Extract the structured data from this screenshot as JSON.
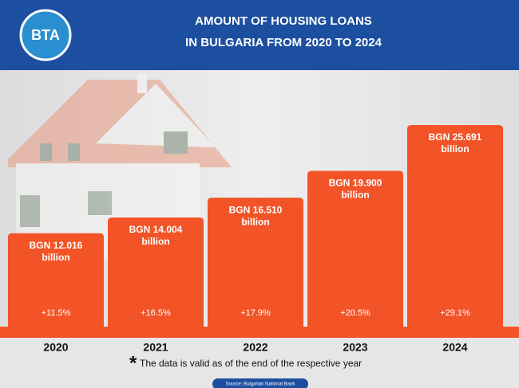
{
  "chart_data": {
    "type": "bar",
    "title": [
      "AMOUNT OF HOUSING LOANS",
      "IN BULGARIA FROM 2020 TO 2024"
    ],
    "logo": "BTA",
    "categories": [
      "2020",
      "2021",
      "2022",
      "2023",
      "2024"
    ],
    "values": [
      12.016,
      14.004,
      16.51,
      19.9,
      25.691
    ],
    "value_labels": [
      [
        "BGN 12.016",
        "billion"
      ],
      [
        "BGN 14.004",
        "billion"
      ],
      [
        "BGN 16.510",
        "billion"
      ],
      [
        "BGN 19.900",
        "billion"
      ],
      [
        "BGN 25.691",
        "billion"
      ]
    ],
    "growth_labels": [
      "+11.5%",
      "+16.5%",
      "+17.9%",
      "+20.5%",
      "+29.1%"
    ],
    "color": "#f25427",
    "footnote_mark": "*",
    "footnote": "The data is valid as of the end of the respective year",
    "source": "Source: Bulgarian National Bank"
  }
}
